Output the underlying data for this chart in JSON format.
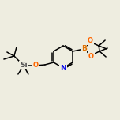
{
  "background_color": "#eeede0",
  "bond_color": "#000000",
  "atom_colors": {
    "N": "#0000ee",
    "O": "#ff6600",
    "B": "#e07000",
    "Si": "#555555",
    "C": "#000000"
  },
  "font_size_atom": 6.5,
  "line_width": 1.1,
  "figsize": [
    1.52,
    1.52
  ],
  "dpi": 100
}
